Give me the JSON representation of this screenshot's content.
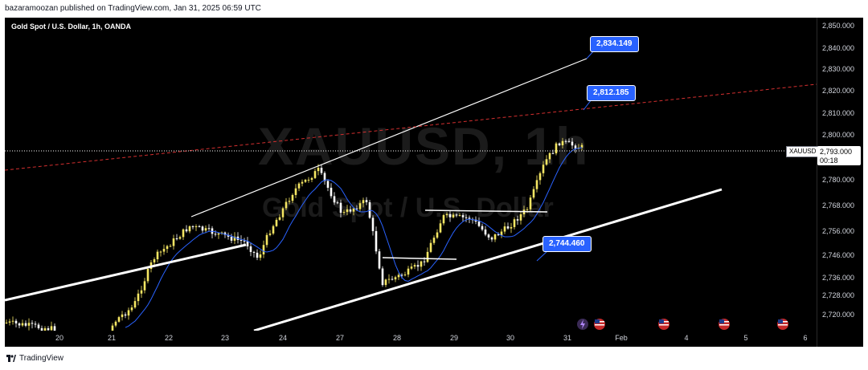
{
  "header": {
    "publish_line": "bazaramoozan published on TradingView.com, Jan 31, 2025 06:59 UTC"
  },
  "chart": {
    "symbol_title": "Gold Spot / U.S. Dollar, 1h, OANDA",
    "watermark_symbol": "XAUUSD, 1h",
    "watermark_name": "Gold Spot / U.S. Dollar",
    "symbol_tag": "XAUUSD",
    "current_price": "2,793.000",
    "countdown": "00:18",
    "price_ticks": [
      "2,850.000",
      "2,840.000",
      "2,830.000",
      "2,820.000",
      "2,810.000",
      "2,800.000",
      "2,780.000",
      "2,768.000",
      "2,756.000",
      "2,746.000",
      "2,736.000",
      "2,728.000",
      "2,720.000"
    ],
    "time_labels": [
      "20",
      "21",
      "22",
      "23",
      "24",
      "27",
      "28",
      "29",
      "30",
      "31",
      "Feb",
      "4",
      "5",
      "6"
    ],
    "callouts": {
      "upper_channel": "2,834.149",
      "resistance_line": "2,812.185",
      "lower_channel": "2,744.460"
    },
    "colors": {
      "bull": "#f5e663",
      "bear": "#ffffff",
      "ema": "#2962ff",
      "resistance": "#d32f2f",
      "callout": "#2962ff",
      "channel": "#ffffff"
    },
    "event_icons": [
      "lightning-icon",
      "us-flag-icon",
      "us-flag-icon",
      "us-flag-icon",
      "us-flag-icon"
    ]
  },
  "footer": {
    "brand": "TradingView"
  }
}
